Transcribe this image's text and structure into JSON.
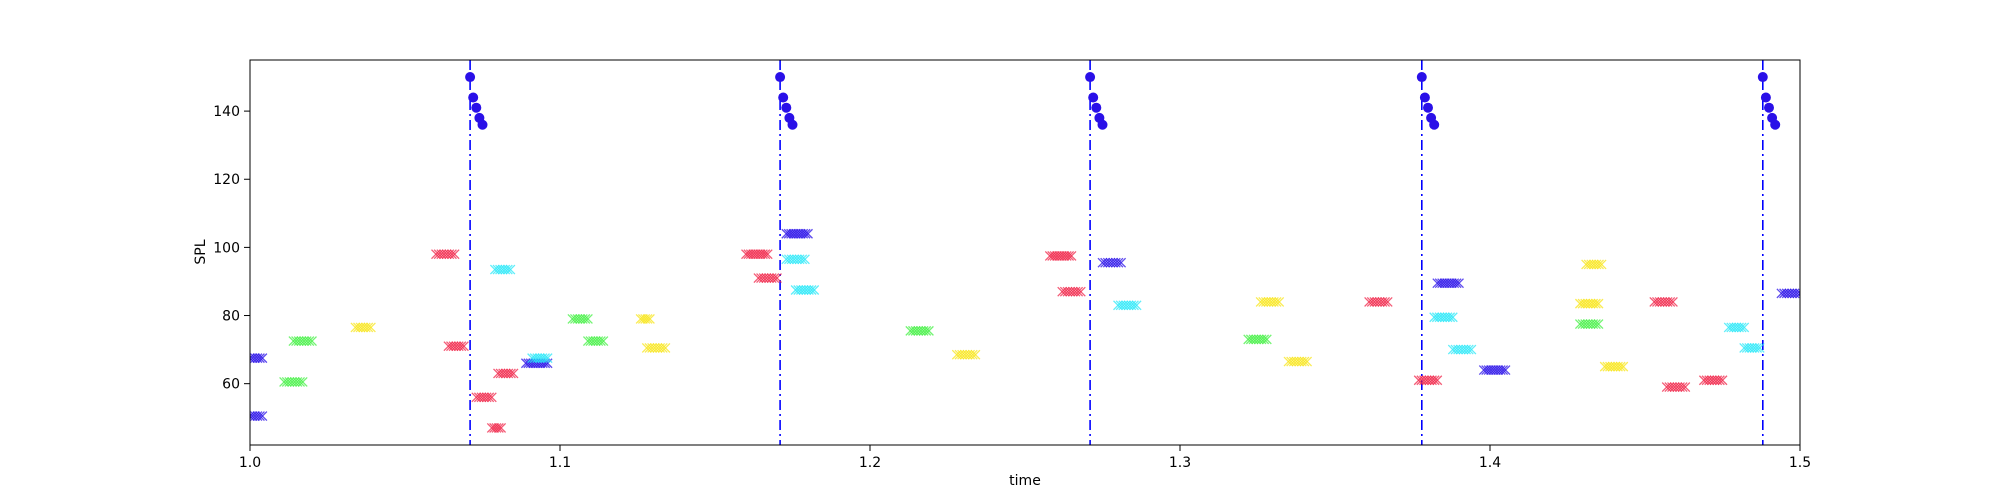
{
  "chart_data": {
    "type": "scatter",
    "xlabel": "time",
    "ylabel": "SPL",
    "xlim": [
      1.0,
      1.5
    ],
    "ylim": [
      42,
      155
    ],
    "grid": false,
    "xticks": [
      1.0,
      1.1,
      1.2,
      1.3,
      1.4,
      1.5
    ],
    "xtick_labels": [
      "1.0",
      "1.1",
      "1.2",
      "1.3",
      "1.4",
      "1.5"
    ],
    "yticks": [
      60,
      80,
      100,
      120,
      140
    ],
    "ytick_labels": [
      "60",
      "80",
      "100",
      "120",
      "140"
    ],
    "vlines": {
      "color": "#0000ff",
      "style": "dashdot",
      "x": [
        1.071,
        1.171,
        1.271,
        1.378,
        1.488
      ]
    },
    "onset_dots": {
      "color": "#2a10e8",
      "groups": [
        {
          "x": [
            1.071,
            1.072,
            1.073,
            1.074,
            1.075
          ],
          "y": [
            150,
            144,
            141,
            138,
            136
          ]
        },
        {
          "x": [
            1.171,
            1.172,
            1.173,
            1.174,
            1.175
          ],
          "y": [
            150,
            144,
            141,
            138,
            136
          ]
        },
        {
          "x": [
            1.271,
            1.272,
            1.273,
            1.274,
            1.275
          ],
          "y": [
            150,
            144,
            141,
            138,
            136
          ]
        },
        {
          "x": [
            1.378,
            1.379,
            1.38,
            1.381,
            1.382
          ],
          "y": [
            150,
            144,
            141,
            138,
            136
          ]
        },
        {
          "x": [
            1.488,
            1.489,
            1.49,
            1.491,
            1.492
          ],
          "y": [
            150,
            144,
            141,
            138,
            136
          ]
        }
      ]
    },
    "note_marks": [
      {
        "x0": 1.0,
        "x1": 1.004,
        "y": 67.5,
        "color": "#2a10e8"
      },
      {
        "x0": 1.0,
        "x1": 1.004,
        "y": 50.5,
        "color": "#2a10e8"
      },
      {
        "x0": 1.011,
        "x1": 1.017,
        "y": 60.5,
        "color": "#44f044"
      },
      {
        "x0": 1.014,
        "x1": 1.02,
        "y": 72.5,
        "color": "#44f044"
      },
      {
        "x0": 1.034,
        "x1": 1.039,
        "y": 76.5,
        "color": "#f8e61a"
      },
      {
        "x0": 1.06,
        "x1": 1.066,
        "y": 98.0,
        "color": "#f02448"
      },
      {
        "x0": 1.064,
        "x1": 1.069,
        "y": 71.0,
        "color": "#f02448"
      },
      {
        "x0": 1.073,
        "x1": 1.078,
        "y": 56.0,
        "color": "#f02448"
      },
      {
        "x0": 1.079,
        "x1": 1.084,
        "y": 93.5,
        "color": "#2ae8f8"
      },
      {
        "x0": 1.08,
        "x1": 1.085,
        "y": 63.0,
        "color": "#f02448"
      },
      {
        "x0": 1.078,
        "x1": 1.081,
        "y": 47.0,
        "color": "#f02448"
      },
      {
        "x0": 1.089,
        "x1": 1.096,
        "y": 66.0,
        "color": "#2a10e8"
      },
      {
        "x0": 1.091,
        "x1": 1.096,
        "y": 67.5,
        "color": "#2ae8f8"
      },
      {
        "x0": 1.104,
        "x1": 1.109,
        "y": 79.0,
        "color": "#44f044"
      },
      {
        "x0": 1.109,
        "x1": 1.114,
        "y": 72.5,
        "color": "#44f044"
      },
      {
        "x0": 1.126,
        "x1": 1.129,
        "y": 79.0,
        "color": "#f8e61a"
      },
      {
        "x0": 1.128,
        "x1": 1.134,
        "y": 70.5,
        "color": "#f8e61a"
      },
      {
        "x0": 1.16,
        "x1": 1.167,
        "y": 98.0,
        "color": "#f02448"
      },
      {
        "x0": 1.164,
        "x1": 1.17,
        "y": 91.0,
        "color": "#f02448"
      },
      {
        "x0": 1.173,
        "x1": 1.18,
        "y": 104.0,
        "color": "#2a10e8"
      },
      {
        "x0": 1.173,
        "x1": 1.179,
        "y": 96.5,
        "color": "#2ae8f8"
      },
      {
        "x0": 1.176,
        "x1": 1.182,
        "y": 87.5,
        "color": "#2ae8f8"
      },
      {
        "x0": 1.213,
        "x1": 1.219,
        "y": 75.5,
        "color": "#44f044"
      },
      {
        "x0": 1.228,
        "x1": 1.234,
        "y": 68.5,
        "color": "#f8e61a"
      },
      {
        "x0": 1.258,
        "x1": 1.265,
        "y": 97.5,
        "color": "#f02448"
      },
      {
        "x0": 1.262,
        "x1": 1.268,
        "y": 87.0,
        "color": "#f02448"
      },
      {
        "x0": 1.275,
        "x1": 1.281,
        "y": 95.5,
        "color": "#2a10e8"
      },
      {
        "x0": 1.28,
        "x1": 1.286,
        "y": 83.0,
        "color": "#2ae8f8"
      },
      {
        "x0": 1.322,
        "x1": 1.328,
        "y": 73.0,
        "color": "#44f044"
      },
      {
        "x0": 1.326,
        "x1": 1.332,
        "y": 84.0,
        "color": "#f8e61a"
      },
      {
        "x0": 1.335,
        "x1": 1.341,
        "y": 66.5,
        "color": "#f8e61a"
      },
      {
        "x0": 1.361,
        "x1": 1.367,
        "y": 84.0,
        "color": "#f02448"
      },
      {
        "x0": 1.377,
        "x1": 1.383,
        "y": 61.0,
        "color": "#f02448"
      },
      {
        "x0": 1.383,
        "x1": 1.39,
        "y": 89.5,
        "color": "#2a10e8"
      },
      {
        "x0": 1.382,
        "x1": 1.388,
        "y": 79.5,
        "color": "#2ae8f8"
      },
      {
        "x0": 1.388,
        "x1": 1.394,
        "y": 70.0,
        "color": "#2ae8f8"
      },
      {
        "x0": 1.398,
        "x1": 1.405,
        "y": 64.0,
        "color": "#2a10e8"
      },
      {
        "x0": 1.429,
        "x1": 1.435,
        "y": 83.5,
        "color": "#f8e61a"
      },
      {
        "x0": 1.429,
        "x1": 1.435,
        "y": 77.5,
        "color": "#44f044"
      },
      {
        "x0": 1.431,
        "x1": 1.436,
        "y": 95.0,
        "color": "#f8e61a"
      },
      {
        "x0": 1.437,
        "x1": 1.443,
        "y": 65.0,
        "color": "#f8e61a"
      },
      {
        "x0": 1.453,
        "x1": 1.459,
        "y": 84.0,
        "color": "#f02448"
      },
      {
        "x0": 1.457,
        "x1": 1.463,
        "y": 59.0,
        "color": "#f02448"
      },
      {
        "x0": 1.469,
        "x1": 1.475,
        "y": 61.0,
        "color": "#f02448"
      },
      {
        "x0": 1.477,
        "x1": 1.482,
        "y": 76.5,
        "color": "#2ae8f8"
      },
      {
        "x0": 1.482,
        "x1": 1.487,
        "y": 70.5,
        "color": "#2ae8f8"
      },
      {
        "x0": 1.494,
        "x1": 1.5,
        "y": 86.5,
        "color": "#2a10e8"
      }
    ]
  }
}
